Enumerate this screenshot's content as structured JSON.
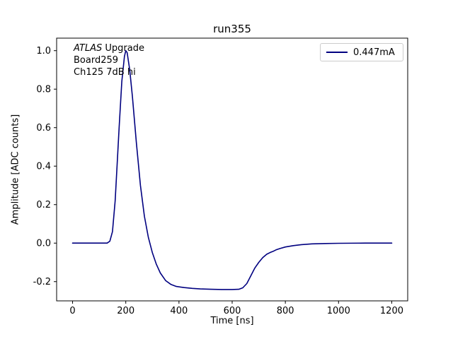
{
  "title": "run355",
  "axes": {
    "xlabel": "Time [ns]",
    "ylabel": "Amplitude [ADC counts]"
  },
  "legend": {
    "entries": [
      {
        "label": "0.447mA",
        "color": "#000080"
      }
    ]
  },
  "annotation": {
    "line1_italic": "ATLAS",
    "line1_rest": " Upgrade",
    "line2": "Board259",
    "line3": "Ch125 7dB hi"
  },
  "chart_data": {
    "type": "line",
    "title": "run355",
    "xlabel": "Time [ns]",
    "ylabel": "Amplitude [ADC counts]",
    "xlim": [
      -60,
      1260
    ],
    "ylim": [
      -0.3,
      1.065
    ],
    "xticks": [
      0,
      200,
      400,
      600,
      800,
      1000,
      1200
    ],
    "xtick_labels": [
      "0",
      "200",
      "400",
      "600",
      "800",
      "1000",
      "1200"
    ],
    "yticks": [
      -0.2,
      0.0,
      0.2,
      0.4,
      0.6,
      0.8,
      1.0
    ],
    "ytick_labels": [
      "-0.2",
      "0.0",
      "0.2",
      "0.4",
      "0.6",
      "0.8",
      "1.0"
    ],
    "grid": false,
    "legend_position": "upper right",
    "series": [
      {
        "name": "0.447mA",
        "color": "#000080",
        "x": [
          0,
          50,
          100,
          130,
          140,
          150,
          160,
          170,
          175,
          185,
          195,
          200,
          205,
          215,
          225,
          240,
          255,
          270,
          285,
          300,
          315,
          330,
          350,
          370,
          390,
          420,
          450,
          480,
          520,
          560,
          600,
          625,
          640,
          655,
          670,
          685,
          700,
          715,
          730,
          745,
          755,
          765,
          780,
          800,
          830,
          860,
          900,
          950,
          1000,
          1100,
          1200
        ],
        "y": [
          0,
          0,
          0,
          0,
          0.01,
          0.06,
          0.22,
          0.47,
          0.6,
          0.84,
          0.97,
          1.0,
          0.99,
          0.9,
          0.76,
          0.52,
          0.3,
          0.14,
          0.03,
          -0.05,
          -0.11,
          -0.155,
          -0.195,
          -0.215,
          -0.225,
          -0.231,
          -0.235,
          -0.238,
          -0.24,
          -0.241,
          -0.241,
          -0.24,
          -0.232,
          -0.21,
          -0.17,
          -0.13,
          -0.1,
          -0.075,
          -0.058,
          -0.047,
          -0.042,
          -0.035,
          -0.028,
          -0.02,
          -0.013,
          -0.008,
          -0.004,
          -0.002,
          -0.001,
          0,
          0
        ]
      }
    ]
  }
}
